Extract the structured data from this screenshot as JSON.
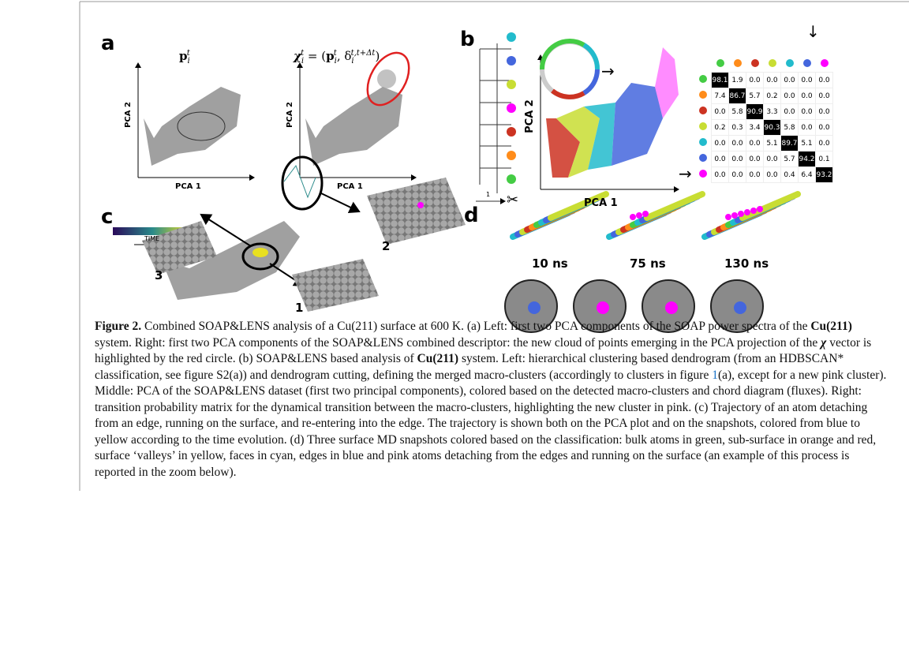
{
  "figure": {
    "panel_a": {
      "label": "a",
      "formula_left": [
        "p",
        "i",
        "t"
      ],
      "formula_right": [
        "χ",
        "i",
        "t",
        " = (",
        "p",
        "i",
        "t",
        ", δ",
        "i",
        "t,t+Δt",
        ")"
      ],
      "axis_y_left": "PCA 2",
      "axis_x_left": "PCA 1",
      "axis_y_right": "PCA 2",
      "axis_x_right": "PCA 1"
    },
    "panel_b": {
      "label": "b",
      "dendrogram_scale": "1",
      "axis_y": "PCA 2",
      "axis_x": "PCA 1",
      "arrow_down": "↓",
      "arrow_right": "→",
      "cluster_colors": [
        "#44cc44",
        "#ff8c1a",
        "#cc3322",
        "#c8dd33",
        "#22bbcc",
        "#4466dd",
        "#ff00ff"
      ],
      "matrix": [
        [
          "98.1",
          "1.9",
          "0.0",
          "0.0",
          "0.0",
          "0.0",
          "0.0"
        ],
        [
          "7.4",
          "86.7",
          "5.7",
          "0.2",
          "0.0",
          "0.0",
          "0.0"
        ],
        [
          "0.0",
          "5.8",
          "90.9",
          "3.3",
          "0.0",
          "0.0",
          "0.0"
        ],
        [
          "0.2",
          "0.3",
          "3.4",
          "90.3",
          "5.8",
          "0.0",
          "0.0"
        ],
        [
          "0.0",
          "0.0",
          "0.0",
          "5.1",
          "89.7",
          "5.1",
          "0.0"
        ],
        [
          "0.0",
          "0.0",
          "0.0",
          "0.0",
          "5.7",
          "94.2",
          "0.1"
        ],
        [
          "0.0",
          "0.0",
          "0.0",
          "0.0",
          "0.4",
          "6.4",
          "93.2"
        ]
      ]
    },
    "panel_c": {
      "label": "c",
      "colorbar_label": "TIME",
      "snapshot_labels": [
        "3",
        "2",
        "1"
      ]
    },
    "panel_d": {
      "label": "d",
      "times": [
        "10 ns",
        "75 ns",
        "130 ns"
      ]
    }
  },
  "caption": [
    "Figure 2.",
    " Combined SOAP&LENS analysis of a Cu(211) surface at 600 K. (a) Left: first two PCA components of the SOAP power spectra of the ",
    "Cu(211)",
    " system. Right: first two PCA components of the SOAP&LENS combined descriptor: the new cloud of points emerging in the PCA projection of the ",
    "χ",
    " vector is highlighted by the red circle. (b) SOAP&LENS based analysis of ",
    "Cu(211)",
    " system. Left: hierarchical clustering based dendrogram (from an HDBSCAN* classification, see figure S2(a)) and dendrogram cutting, defining the merged macro-clusters (accordingly to clusters in figure ",
    "1",
    "(a), except for a new pink cluster). Middle: PCA of the SOAP&LENS dataset (first two principal components), colored based on the detected macro-clusters and chord diagram (fluxes). Right: transition probability matrix for the dynamical transition between the macro-clusters, highlighting the new cluster in pink. (c) Trajectory of an atom detaching from an edge, running on the surface, and re-entering into the edge. The trajectory is shown both on the PCA plot and on the snapshots, colored from blue to yellow according to the time evolution. (d) Three surface MD snapshots colored based on the classification: bulk atoms in green, sub-surface in orange and red, surface ‘valleys’ in yellow, faces in cyan, edges in blue and pink atoms detaching from the edges and running on the surface (an example of this process is reported in the zoom below)."
  ]
}
